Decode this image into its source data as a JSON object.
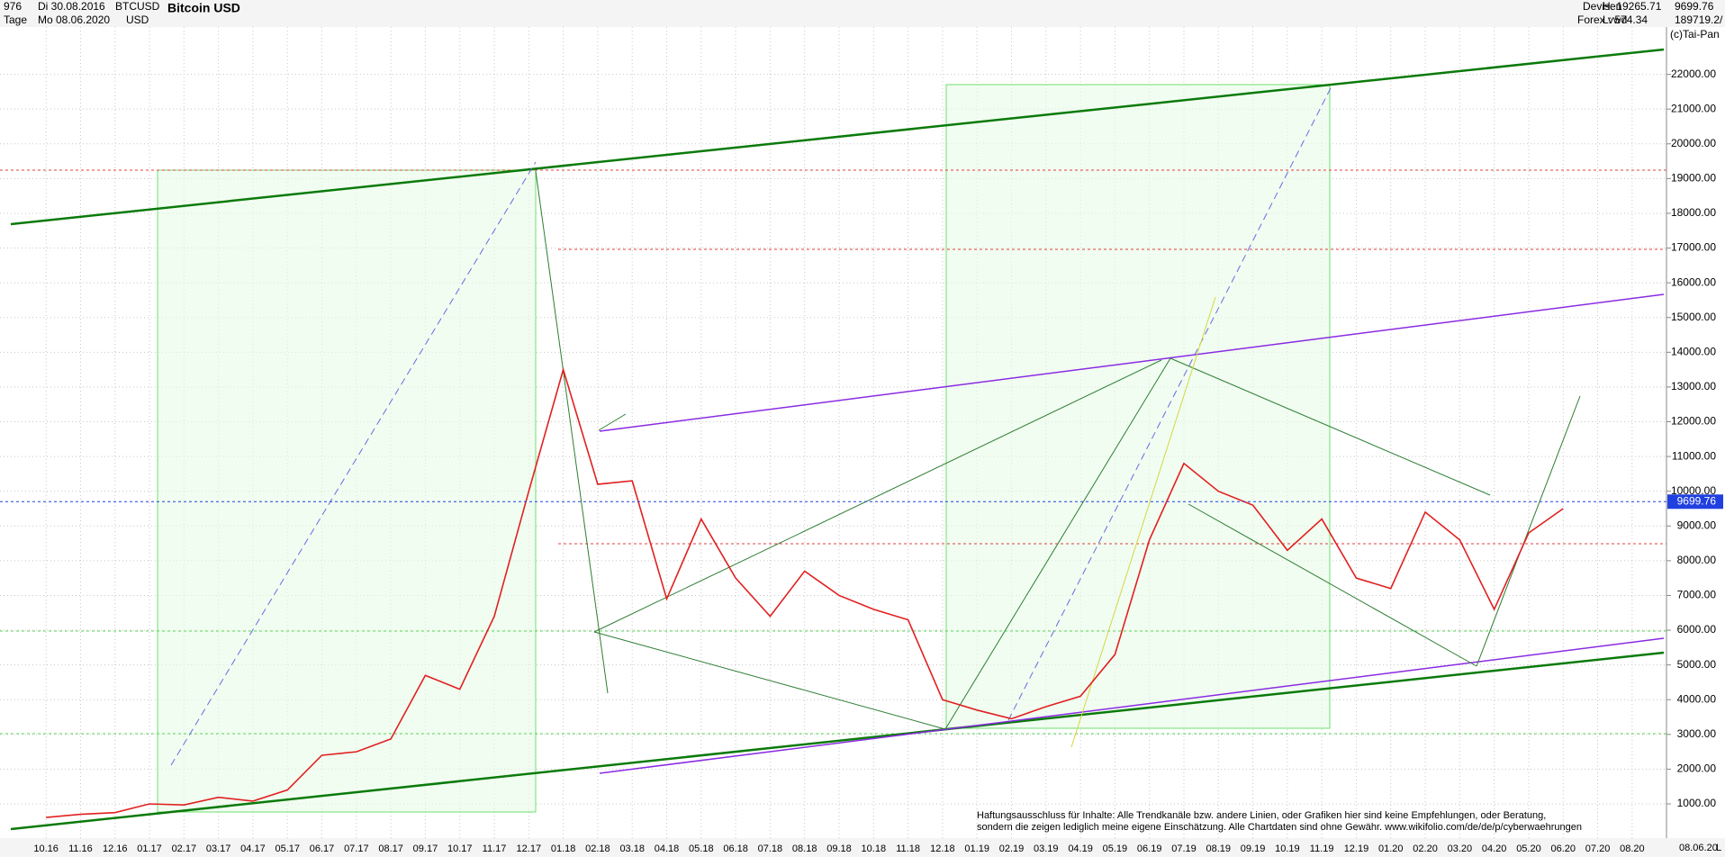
{
  "header": {
    "id": "976",
    "start": "Di 30.08.2016",
    "symbol": "BTCUSD",
    "title": "Bitcoin USD",
    "period": "Tage",
    "end": "Mo 08.06.2020",
    "currency": "USD",
    "market": "Devisen",
    "source": "Forex vwd",
    "high": "H: 19265.71",
    "low": "L: 574.34",
    "volume": "189719.2/",
    "copyright": "(c)Tai-Pan"
  },
  "footer": {
    "date": "08.06.20",
    "scale": "L"
  },
  "disclaimer": [
    "Haftungsausschluss für Inhalte: Alle Trendkanäle bzw. andere Linien, oder Grafiken hier sind keine Empfehlungen, oder Beratung,",
    "sondern die zeigen lediglich meine eigene Einschätzung. Alle Chartdaten sind ohne Gewähr.  www.wikifolio.com/de/de/p/cyberwaehrungen"
  ],
  "chart_data": {
    "type": "line",
    "title": "Bitcoin USD",
    "current_price": 9699.76,
    "categories": [
      "10.16",
      "11.16",
      "12.16",
      "01.17",
      "02.17",
      "03.17",
      "04.17",
      "05.17",
      "06.17",
      "07.17",
      "08.17",
      "09.17",
      "10.17",
      "11.17",
      "12.17",
      "01.18",
      "02.18",
      "03.18",
      "04.18",
      "05.18",
      "06.18",
      "07.18",
      "08.18",
      "09.18",
      "10.18",
      "11.18",
      "12.18",
      "01.19",
      "02.19",
      "03.19",
      "04.19",
      "05.19",
      "06.19",
      "07.19",
      "08.19",
      "09.19",
      "10.19",
      "11.19",
      "12.19",
      "01.20",
      "02.20",
      "03.20",
      "04.20",
      "05.20",
      "06.20",
      "07.20",
      "08.20"
    ],
    "series": [
      {
        "color": "#e02020",
        "values": [
          610,
          700,
          750,
          1000,
          970,
          1190,
          1080,
          1400,
          2400,
          2500,
          2870,
          4700,
          4300,
          6400,
          10000,
          13500,
          10200,
          10300,
          6900,
          9200,
          7500,
          6400,
          7700,
          7000,
          6600,
          6300,
          4000,
          3700,
          3450,
          3800,
          4100,
          5300,
          8600,
          10800,
          10000,
          9600,
          8300,
          9200,
          7500,
          7200,
          9400,
          8600,
          6600,
          8800,
          9500,
          null,
          null
        ]
      }
    ],
    "ylim": [
      0,
      23000
    ],
    "yticks": [
      {
        "value": 1000,
        "label": "1000.00"
      },
      {
        "value": 2000,
        "label": "2000.00"
      },
      {
        "value": 3000,
        "label": "3000.00"
      },
      {
        "value": 4000,
        "label": "4000.00"
      },
      {
        "value": 5000,
        "label": "5000.00"
      },
      {
        "value": 6000,
        "label": "6000.00"
      },
      {
        "value": 7000,
        "label": "7000.00"
      },
      {
        "value": 8000,
        "label": "8000.00"
      },
      {
        "value": 9000,
        "label": "9000.00"
      },
      {
        "value": 10000,
        "label": "10000.00"
      },
      {
        "value": 11000,
        "label": "11000.00"
      },
      {
        "value": 12000,
        "label": "12000.00"
      },
      {
        "value": 13000,
        "label": "13000.00"
      },
      {
        "value": 14000,
        "label": "14000.00"
      },
      {
        "value": 15000,
        "label": "15000.00"
      },
      {
        "value": 16000,
        "label": "16000.00"
      },
      {
        "value": 17000,
        "label": "17000.00"
      },
      {
        "value": 18000,
        "label": "18000.00"
      },
      {
        "value": 19000,
        "label": "19000.00"
      },
      {
        "value": 20000,
        "label": "20000.00"
      },
      {
        "value": 21000,
        "label": "21000.00"
      },
      {
        "value": 22000,
        "label": "22000.00"
      }
    ],
    "grid": true
  }
}
